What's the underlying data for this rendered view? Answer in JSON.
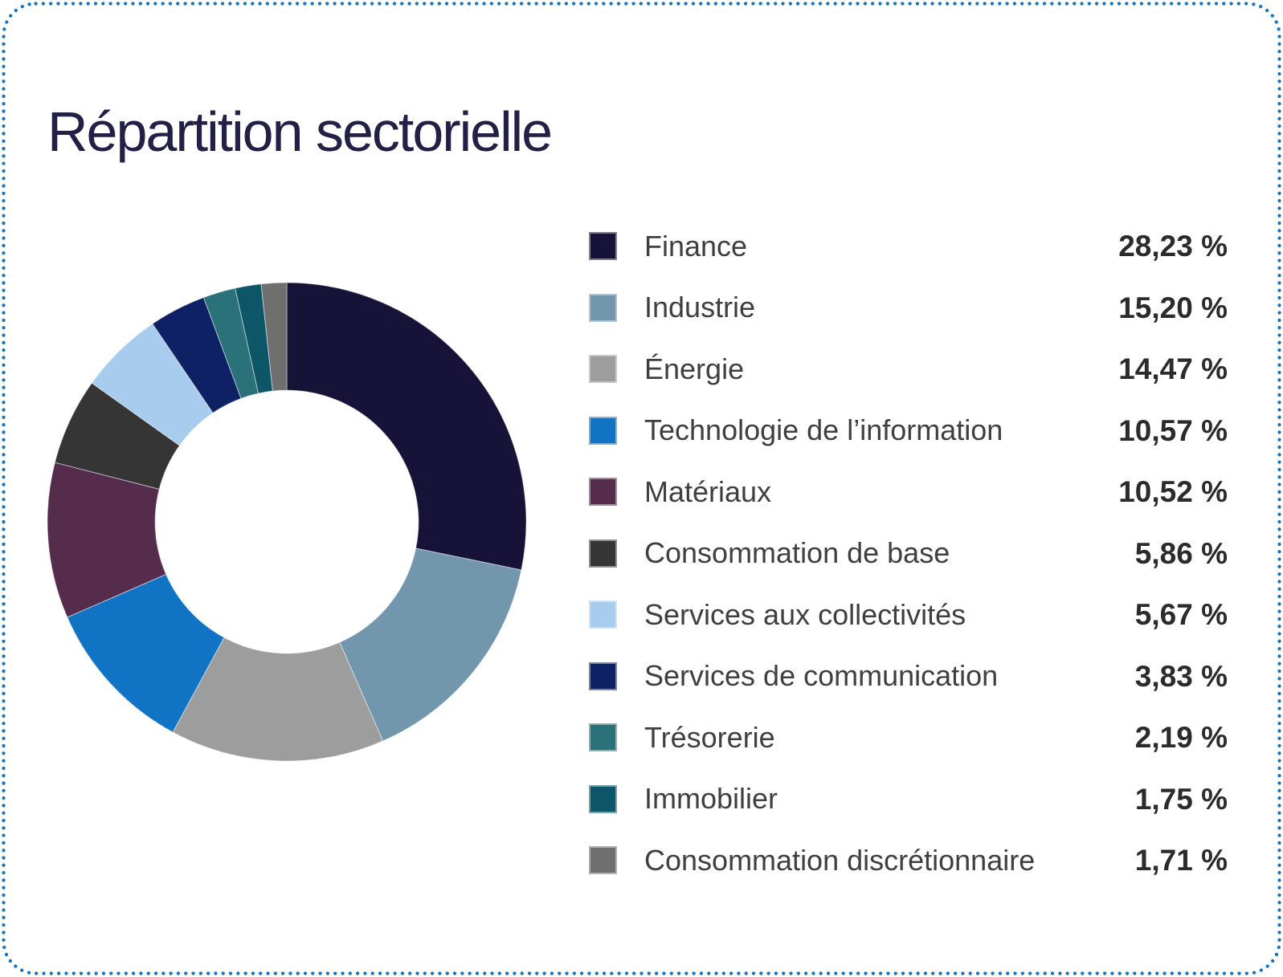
{
  "card": {
    "title": "Répartition sectorielle",
    "border_color": "#1273c0",
    "background": "#ffffff",
    "title_color": "#232047"
  },
  "chart_data": {
    "type": "pie",
    "variant": "donut",
    "title": "Répartition sectorielle",
    "unit": "%",
    "total": 100.0,
    "start_angle_deg": 0,
    "direction": "clockwise",
    "inner_radius_ratio": 0.55,
    "legend_position": "right",
    "series": [
      {
        "label": "Finance",
        "value": 28.23,
        "display": "28,23 %",
        "color": "#171338"
      },
      {
        "label": "Industrie",
        "value": 15.2,
        "display": "15,20 %",
        "color": "#7296ac"
      },
      {
        "label": "Énergie",
        "value": 14.47,
        "display": "14,47 %",
        "color": "#9d9d9d"
      },
      {
        "label": "Technologie de l’information",
        "value": 10.57,
        "display": "10,57 %",
        "color": "#1173c3"
      },
      {
        "label": "Matériaux",
        "value": 10.52,
        "display": "10,52 %",
        "color": "#552c4b"
      },
      {
        "label": "Consommation de base",
        "value": 5.86,
        "display": "5,86 %",
        "color": "#353535"
      },
      {
        "label": "Services aux collectivités",
        "value": 5.67,
        "display": "5,67 %",
        "color": "#a7ccee"
      },
      {
        "label": "Services de communication",
        "value": 3.83,
        "display": "3,83 %",
        "color": "#0d2164"
      },
      {
        "label": "Trésorerie",
        "value": 2.19,
        "display": "2,19 %",
        "color": "#2a7179"
      },
      {
        "label": "Immobilier",
        "value": 1.75,
        "display": "1,75 %",
        "color": "#0c5668"
      },
      {
        "label": "Consommation discrétionnaire",
        "value": 1.71,
        "display": "1,71 %",
        "color": "#6f6f6f"
      }
    ]
  }
}
